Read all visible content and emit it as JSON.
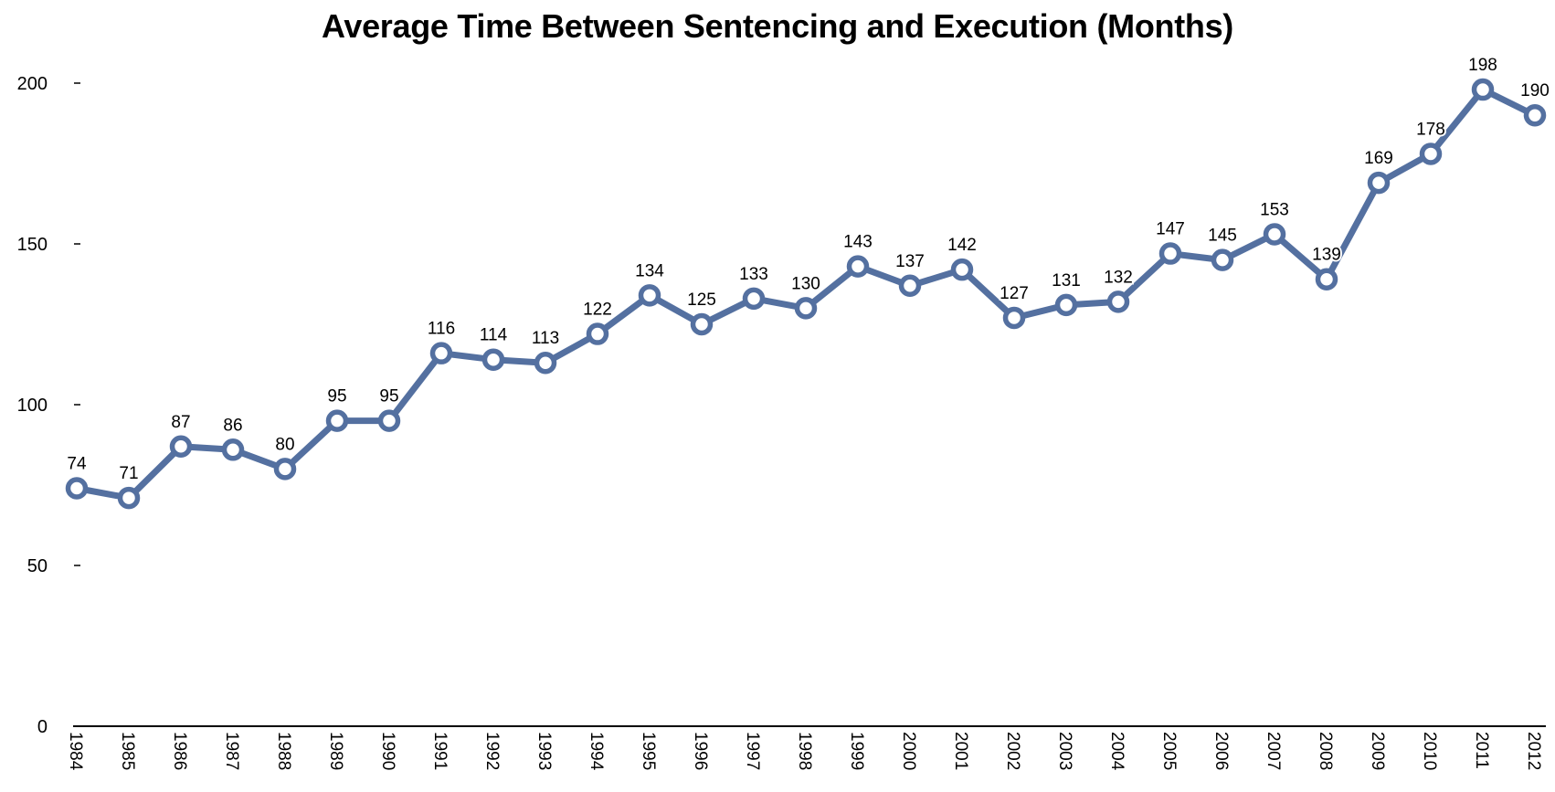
{
  "chart_data": {
    "type": "line",
    "title": "Average Time Between Sentencing and Execution (Months)",
    "xlabel": "",
    "ylabel": "",
    "categories": [
      "1984",
      "1985",
      "1986",
      "1987",
      "1988",
      "1989",
      "1990",
      "1991",
      "1992",
      "1993",
      "1994",
      "1995",
      "1996",
      "1997",
      "1998",
      "1999",
      "2000",
      "2001",
      "2002",
      "2003",
      "2004",
      "2005",
      "2006",
      "2007",
      "2008",
      "2009",
      "2010",
      "2011",
      "2012"
    ],
    "series": [
      {
        "values": [
          74,
          71,
          87,
          86,
          80,
          95,
          95,
          116,
          114,
          113,
          122,
          134,
          125,
          133,
          130,
          143,
          137,
          142,
          127,
          131,
          132,
          147,
          145,
          153,
          139,
          169,
          178,
          198,
          190
        ]
      }
    ],
    "ylim": [
      0,
      200
    ],
    "yticks": [
      0,
      50,
      100,
      150,
      200
    ],
    "grid": false,
    "legend": "none",
    "data_labels": true,
    "colors": {
      "line": "#5470a0",
      "marker_fill": "#ffffff",
      "axis": "#000000",
      "text": "#000000"
    }
  }
}
